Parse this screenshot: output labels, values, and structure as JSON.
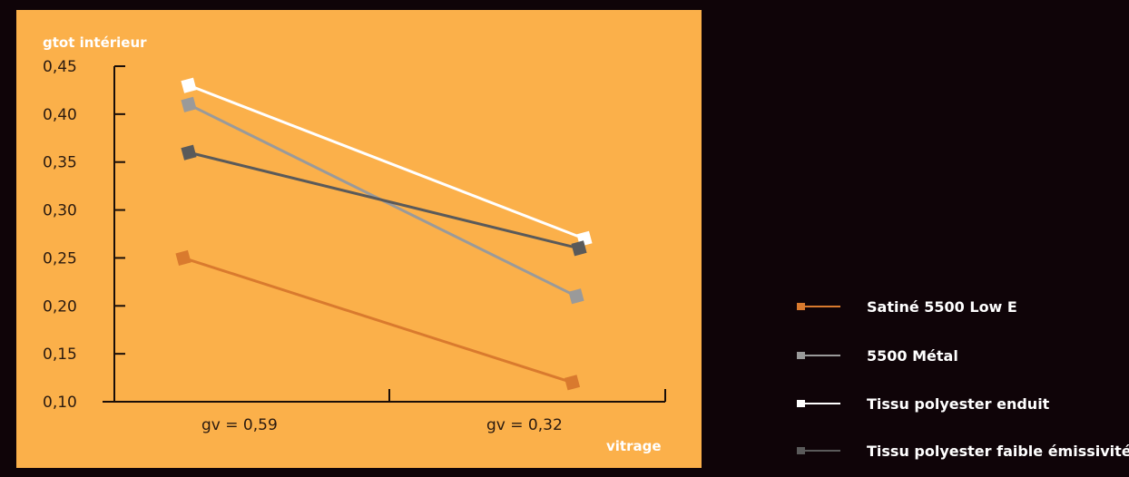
{
  "colors": {
    "page_background": "#0f0408",
    "plot_background": "#fbb04a",
    "axis": "#1a0e08"
  },
  "chart_data": {
    "type": "line",
    "ylabel": "gtot intérieur",
    "xlabel": "vitrage",
    "ylim": [
      0.1,
      0.45
    ],
    "yticks": [
      0.1,
      0.15,
      0.2,
      0.25,
      0.3,
      0.35,
      0.4,
      0.45
    ],
    "ytick_labels": [
      "0,10",
      "0,15",
      "0,20",
      "0,25",
      "0,30",
      "0,35",
      "0,40",
      "0,45"
    ],
    "categories": [
      "gv = 0,59",
      "gv = 0,32"
    ],
    "grid": false,
    "legend_position": "right",
    "series": [
      {
        "name": "Satiné 5500 Low E",
        "color": "#d97a2e",
        "values": [
          0.25,
          0.12
        ],
        "x_offset": [
          -0.2,
          -0.45
        ]
      },
      {
        "name": "5500 Métal",
        "color": "#9a9a9a",
        "values": [
          0.41,
          0.21
        ],
        "x_offset": [
          0.0,
          -0.3
        ]
      },
      {
        "name": "Tissu polyester enduit",
        "color": "#ffffff",
        "values": [
          0.43,
          0.27
        ],
        "x_offset": [
          0.0,
          0.0
        ]
      },
      {
        "name": "Tissu polyester faible émissivité",
        "color": "#5a5a5a",
        "values": [
          0.36,
          0.26
        ],
        "x_offset": [
          0.0,
          -0.2
        ]
      }
    ]
  }
}
